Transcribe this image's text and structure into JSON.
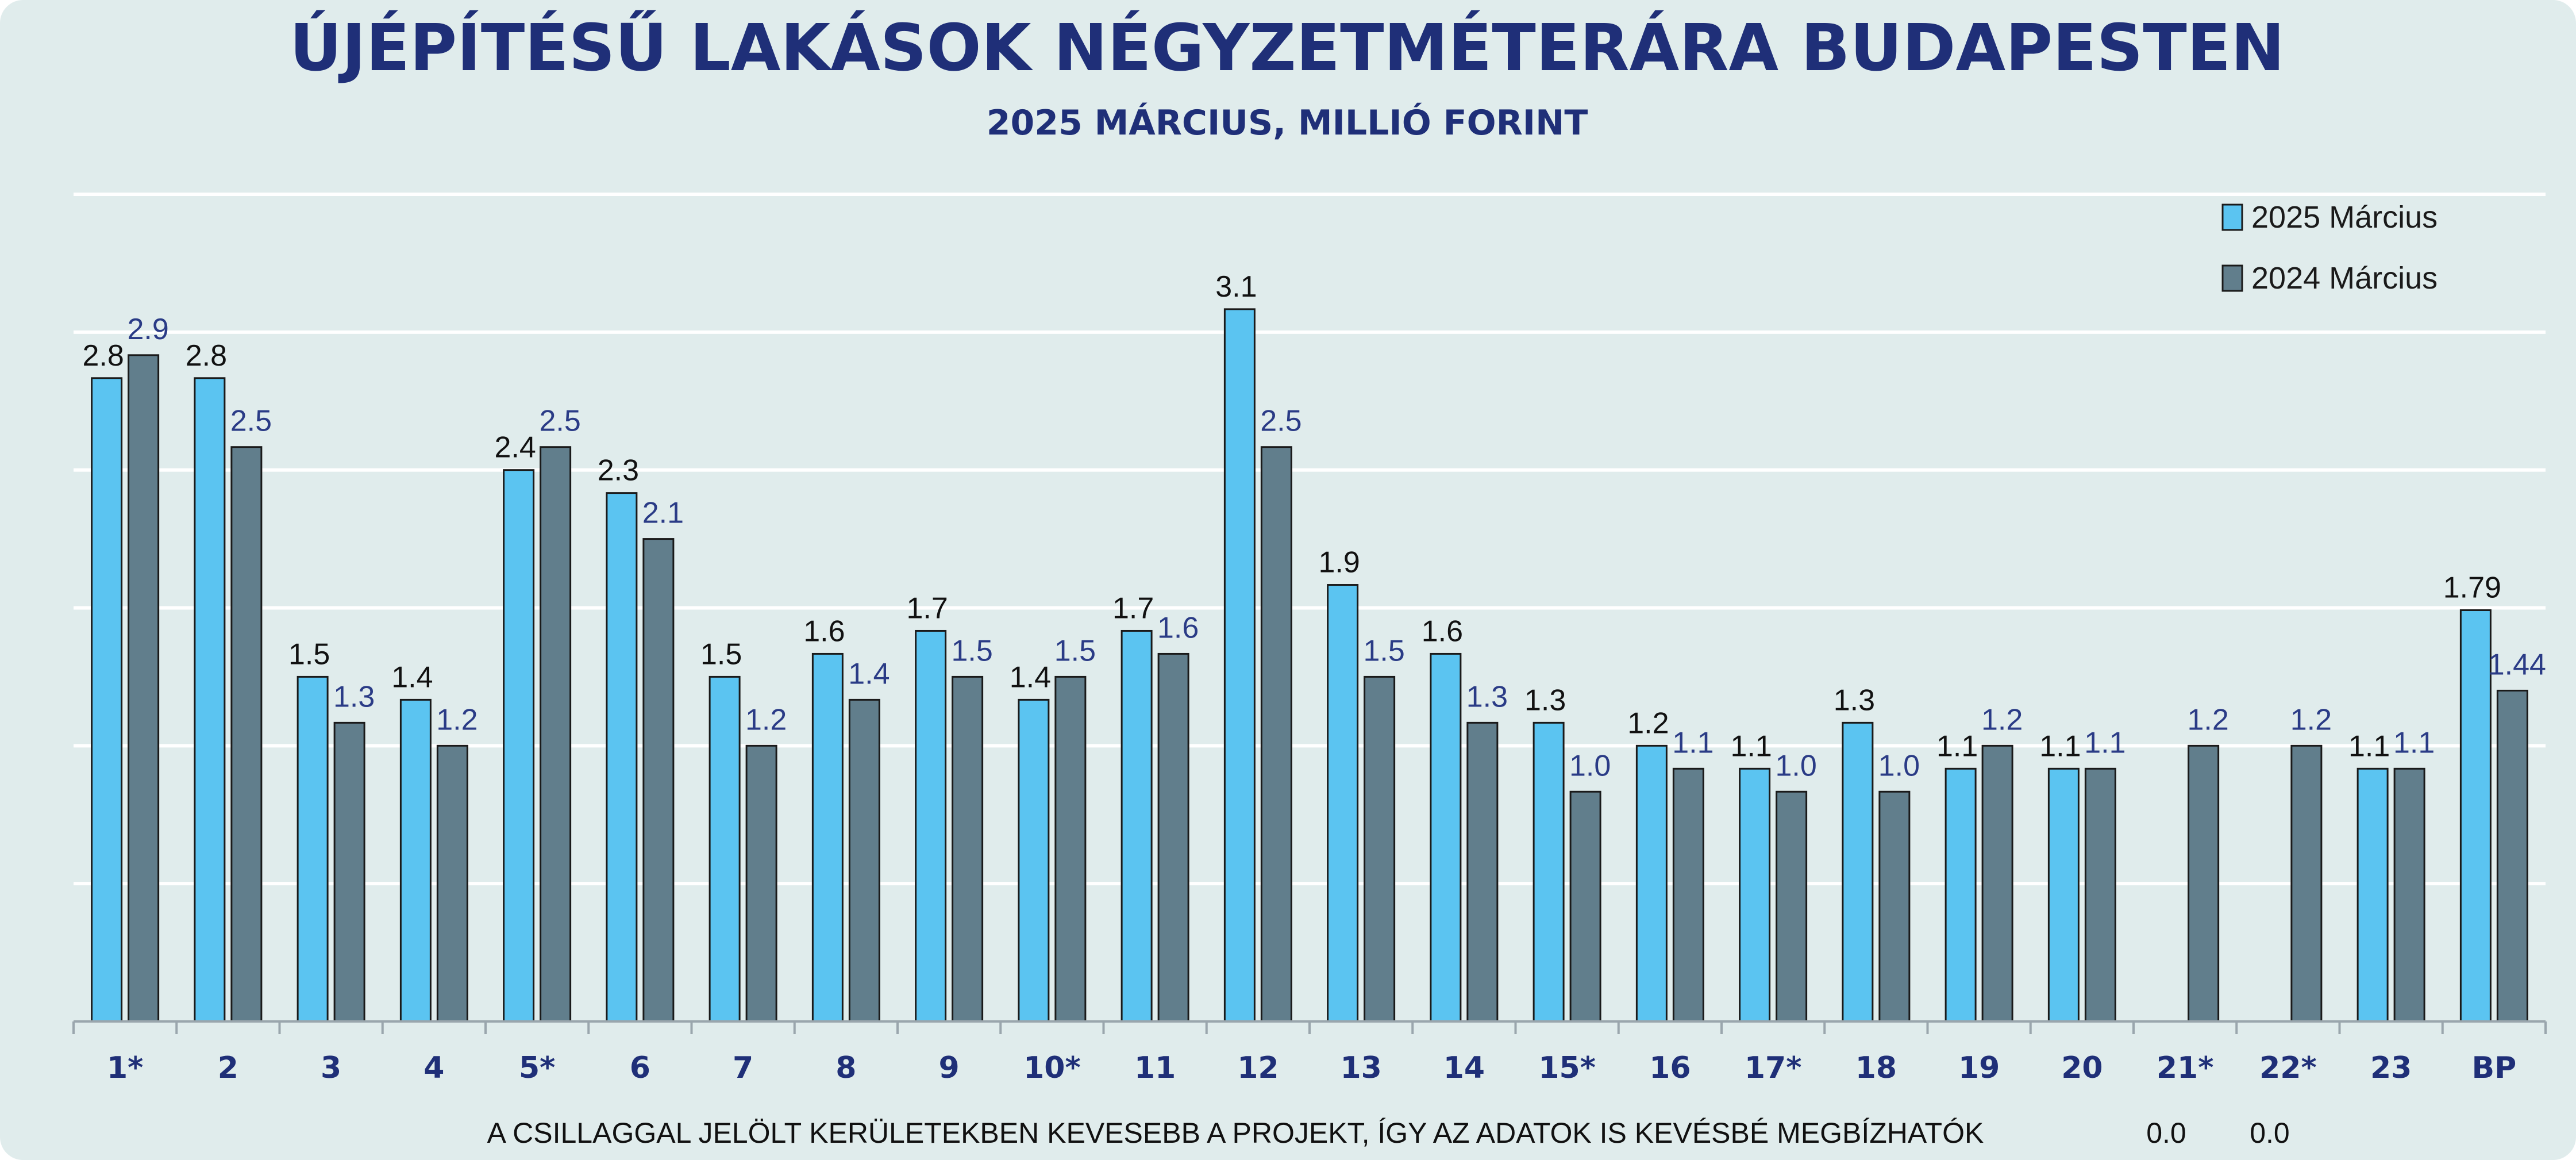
{
  "chart_data": {
    "type": "bar",
    "title": "ÚJÉPÍTÉSŰ LAKÁSOK NÉGYZETMÉTERÁRA BUDAPESTEN",
    "subtitle": "2025 MÁRCIUS, MILLIÓ FORINT",
    "categories": [
      "1*",
      "2",
      "3",
      "4",
      "5*",
      "6",
      "7",
      "8",
      "9",
      "10*",
      "11",
      "12",
      "13",
      "14",
      "15*",
      "16",
      "17*",
      "18",
      "19",
      "20",
      "21*",
      "22*",
      "23",
      "BP"
    ],
    "series": [
      {
        "name": "2025 Március",
        "color": "#5bc4f1",
        "values": [
          2.8,
          2.8,
          1.5,
          1.4,
          2.4,
          2.3,
          1.5,
          1.6,
          1.7,
          1.4,
          1.7,
          3.1,
          1.9,
          1.6,
          1.3,
          1.2,
          1.1,
          1.3,
          1.1,
          1.1,
          0.0,
          0.0,
          1.1,
          1.79
        ],
        "labels": [
          "2.8",
          "2.8",
          "1.5",
          "1.4",
          "2.4",
          "2.3",
          "1.5",
          "1.6",
          "1.7",
          "1.4",
          "1.7",
          "3.1",
          "1.9",
          "1.6",
          "1.3",
          "1.2",
          "1.1",
          "1.3",
          "1.1",
          "1.1",
          "0.0",
          "0.0",
          "1.1",
          "1.79"
        ]
      },
      {
        "name": "2024 Március",
        "color": "#617e8c",
        "values": [
          2.9,
          2.5,
          1.3,
          1.2,
          2.5,
          2.1,
          1.2,
          1.4,
          1.5,
          1.5,
          1.6,
          2.5,
          1.5,
          1.3,
          1.0,
          1.1,
          1.0,
          1.0,
          1.2,
          1.1,
          1.2,
          1.2,
          1.1,
          1.44
        ],
        "labels": [
          "2.9",
          "2.5",
          "1.3",
          "1.2",
          "2.5",
          "2.1",
          "1.2",
          "1.4",
          "1.5",
          "1.5",
          "1.6",
          "2.5",
          "1.5",
          "1.3",
          "1.0",
          "1.1",
          "1.0",
          "1.0",
          "1.2",
          "1.1",
          "1.2",
          "1.2",
          "1.1",
          "1.44"
        ]
      }
    ],
    "ylim": [
      0,
      3.6
    ],
    "grid": true,
    "legend_position": "top-right",
    "footnote": "A CSILLAGGAL JELÖLT KERÜLETEKBEN KEVESEBB A PROJEKT, ÍGY AZ ADATOK IS KEVÉSBÉ MEGBÍZHATÓK",
    "background_color": "#e0ecec",
    "title_color": "#1f2f78"
  }
}
